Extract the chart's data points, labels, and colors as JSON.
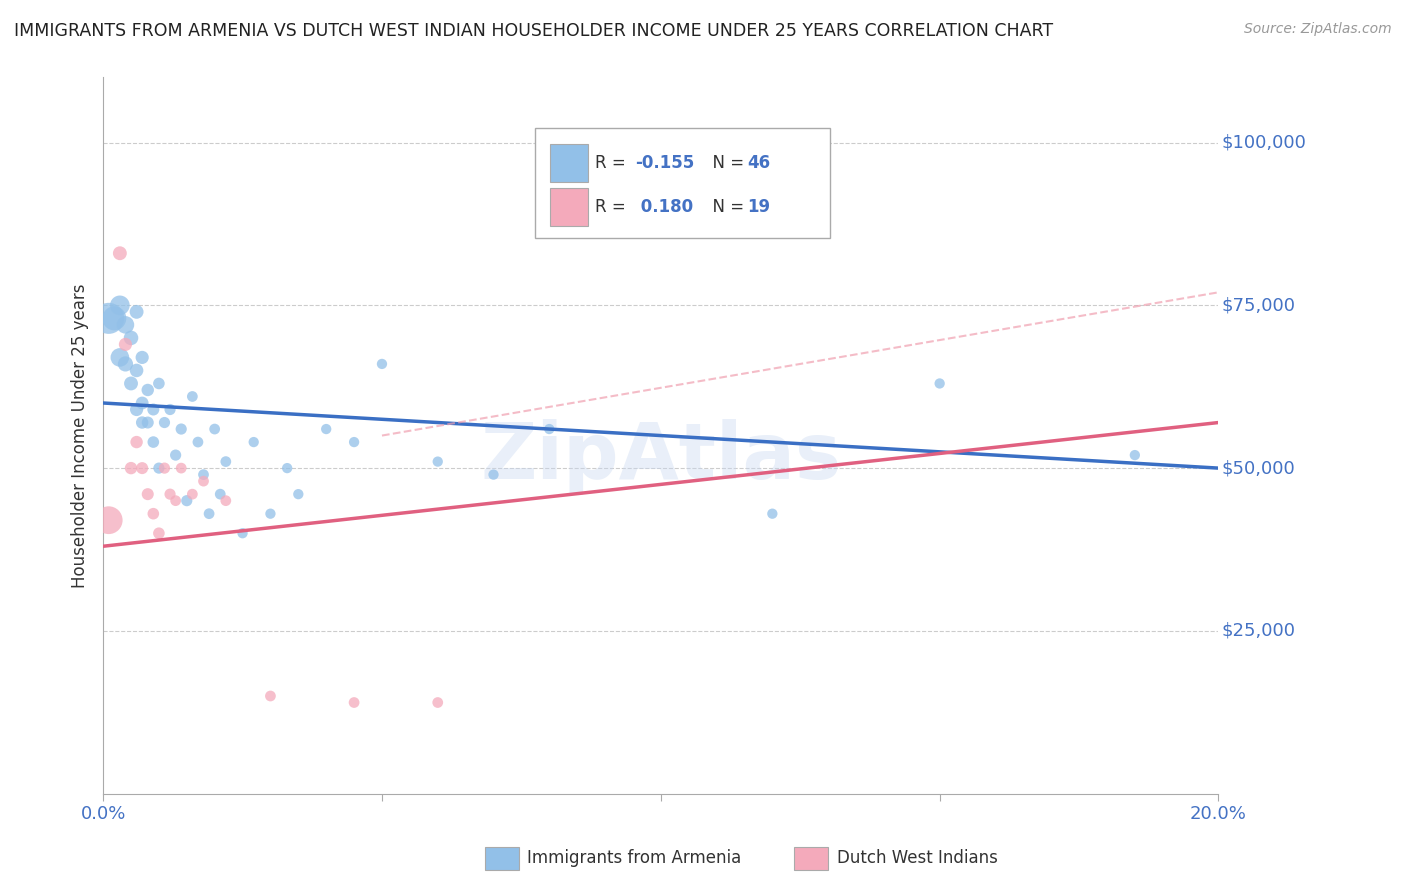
{
  "title": "IMMIGRANTS FROM ARMENIA VS DUTCH WEST INDIAN HOUSEHOLDER INCOME UNDER 25 YEARS CORRELATION CHART",
  "source": "Source: ZipAtlas.com",
  "ylabel": "Householder Income Under 25 years",
  "xlim": [
    0.0,
    0.2
  ],
  "ylim": [
    0,
    110000
  ],
  "ytick_labels": [
    "$25,000",
    "$50,000",
    "$75,000",
    "$100,000"
  ],
  "ytick_values": [
    25000,
    50000,
    75000,
    100000
  ],
  "legend1_label": "Immigrants from Armenia",
  "legend2_label": "Dutch West Indians",
  "R1": -0.155,
  "N1": 46,
  "R2": 0.18,
  "N2": 19,
  "blue_color": "#92C0E8",
  "pink_color": "#F4AABB",
  "blue_line_color": "#3A6FC4",
  "pink_line_color": "#E06080",
  "pink_dashed_color": "#F0A0B0",
  "background_color": "#FFFFFF",
  "grid_color": "#CCCCCC",
  "axis_label_color": "#4472C4",
  "blue_scatter": {
    "x": [
      0.001,
      0.002,
      0.003,
      0.003,
      0.004,
      0.004,
      0.005,
      0.005,
      0.006,
      0.006,
      0.006,
      0.007,
      0.007,
      0.007,
      0.008,
      0.008,
      0.009,
      0.009,
      0.01,
      0.01,
      0.011,
      0.012,
      0.013,
      0.014,
      0.015,
      0.016,
      0.017,
      0.018,
      0.019,
      0.02,
      0.021,
      0.022,
      0.025,
      0.027,
      0.03,
      0.033,
      0.035,
      0.04,
      0.045,
      0.05,
      0.06,
      0.07,
      0.08,
      0.12,
      0.15,
      0.185
    ],
    "y": [
      73000,
      73000,
      75000,
      67000,
      72000,
      66000,
      70000,
      63000,
      74000,
      65000,
      59000,
      67000,
      60000,
      57000,
      62000,
      57000,
      59000,
      54000,
      63000,
      50000,
      57000,
      59000,
      52000,
      56000,
      45000,
      61000,
      54000,
      49000,
      43000,
      56000,
      46000,
      51000,
      40000,
      54000,
      43000,
      50000,
      46000,
      56000,
      54000,
      66000,
      51000,
      49000,
      56000,
      43000,
      63000,
      52000
    ],
    "sizes": [
      500,
      300,
      200,
      180,
      160,
      120,
      110,
      100,
      100,
      95,
      90,
      90,
      85,
      80,
      80,
      75,
      75,
      70,
      70,
      65,
      65,
      65,
      65,
      65,
      65,
      60,
      60,
      60,
      60,
      60,
      60,
      60,
      55,
      55,
      55,
      55,
      55,
      55,
      55,
      55,
      55,
      55,
      55,
      55,
      55,
      55
    ]
  },
  "pink_scatter": {
    "x": [
      0.001,
      0.003,
      0.004,
      0.005,
      0.006,
      0.007,
      0.008,
      0.009,
      0.01,
      0.011,
      0.012,
      0.013,
      0.014,
      0.016,
      0.018,
      0.022,
      0.03,
      0.045,
      0.06
    ],
    "y": [
      42000,
      83000,
      69000,
      50000,
      54000,
      50000,
      46000,
      43000,
      40000,
      50000,
      46000,
      45000,
      50000,
      46000,
      48000,
      45000,
      15000,
      14000,
      14000
    ],
    "sizes": [
      400,
      100,
      90,
      80,
      80,
      75,
      75,
      70,
      70,
      65,
      65,
      60,
      60,
      60,
      60,
      60,
      60,
      60,
      60
    ]
  },
  "blue_line": {
    "x0": 0.0,
    "y0": 60000,
    "x1": 0.2,
    "y1": 50000
  },
  "pink_line": {
    "x0": 0.0,
    "y0": 38000,
    "x1": 0.2,
    "y1": 57000
  },
  "pink_dashed_line": {
    "x0": 0.05,
    "y0": 55000,
    "x1": 0.2,
    "y1": 77000
  }
}
